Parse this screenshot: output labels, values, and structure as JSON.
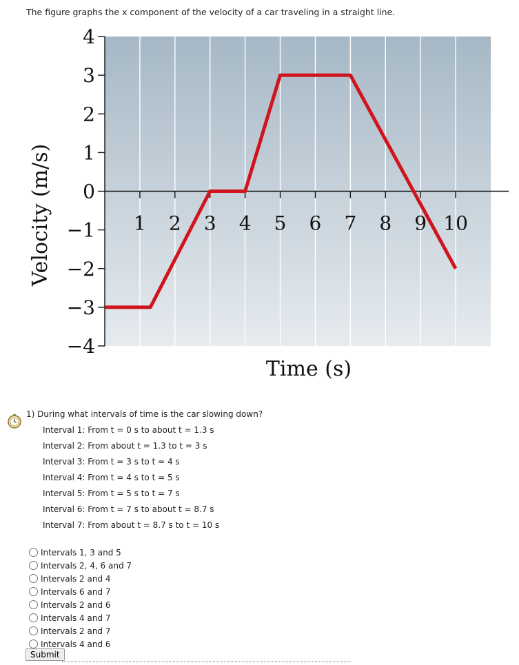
{
  "intro_text": "The figure graphs the x component of the velocity of a car traveling in a straight line.",
  "chart_data": {
    "type": "line",
    "ylabel": "Velocity (m/s)",
    "xlabel": "Time (s)",
    "xlim": [
      0,
      11
    ],
    "ylim": [
      -4,
      4
    ],
    "x_ticks": [
      1,
      2,
      3,
      4,
      5,
      6,
      7,
      8,
      9,
      10
    ],
    "y_ticks": [
      4,
      3,
      2,
      1,
      0,
      -1,
      -2,
      -3,
      -4
    ],
    "y_tick_labels": [
      "4",
      "3",
      "2",
      "1",
      "0",
      "−1",
      "−2",
      "−3",
      "−4"
    ],
    "grid": true,
    "series_color": "#d0141e",
    "series": [
      {
        "x": [
          0,
          1.3,
          3,
          4,
          5,
          7,
          10
        ],
        "y": [
          -3,
          -3,
          0,
          0,
          3,
          3,
          -2
        ]
      }
    ]
  },
  "question": {
    "text": "1) During what intervals of time is the car slowing down?",
    "intervals": [
      "Interval 1: From t = 0 s to about t = 1.3 s",
      "Interval 2: From about t = 1.3 to t = 3 s",
      "Interval 3: From t = 3 s to t = 4 s",
      "Interval 4: From t = 4 s to t = 5 s",
      "Interval 5: From t = 5 s to t = 7 s",
      "Interval 6: From t = 7 s to about t = 8.7 s",
      "Interval 7: From about t  = 8.7 s to t = 10 s"
    ],
    "options": [
      "Intervals 1, 3 and 5",
      "Intervals 2, 4, 6 and 7",
      "Intervals 2 and 4",
      "Intervals 6 and 7",
      "Intervals 2 and 6",
      "Intervals 4 and 7",
      "Intervals 2 and 7",
      "Intervals 4 and 6"
    ],
    "submit_label": "Submit"
  }
}
